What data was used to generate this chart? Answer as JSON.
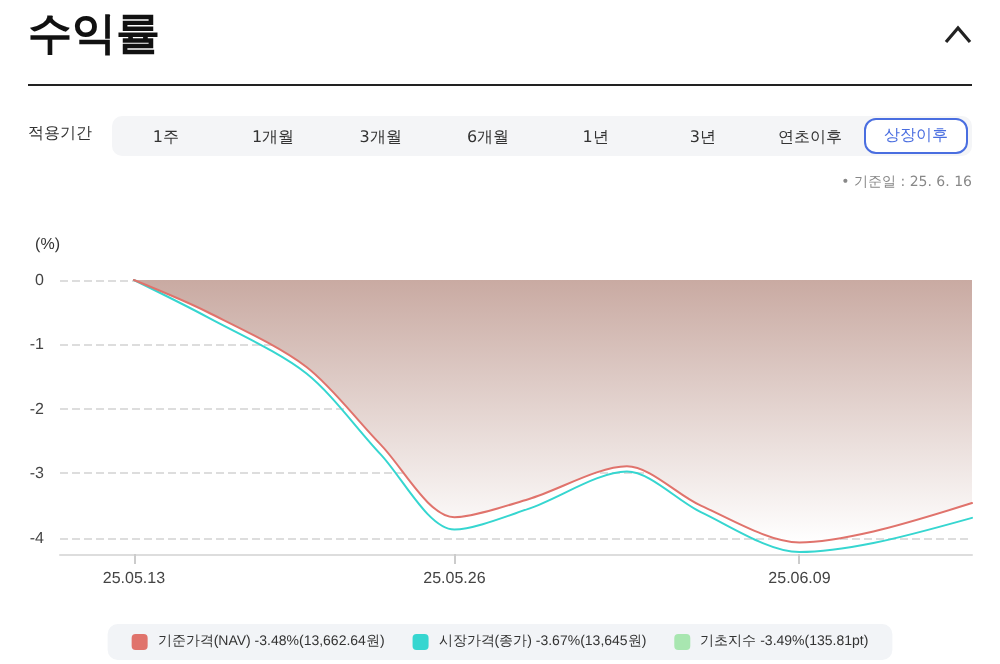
{
  "chart_data": {
    "type": "line",
    "title": "수익률",
    "annotations": [
      "적용기간",
      "1주",
      "1개월",
      "3개월",
      "6개월",
      "1년",
      "3년",
      "연초이후",
      "상장이후",
      "• 기준일 : 25. 6. 16"
    ],
    "ylabel": "(%)",
    "x": [
      "--05-13",
      "--05-16",
      "--05-20",
      "--05-23",
      "--05-26",
      "--05-29",
      "--06-02",
      "--06-05",
      "--06-09",
      "--06-12",
      "--06-16"
    ],
    "xlim": [
      "--05-10",
      "--06-16"
    ],
    "xticks": [
      {
        "value": "--05-13",
        "label": "25.05.13"
      },
      {
        "value": "--05-26",
        "label": "25.05.26"
      },
      {
        "value": "--06-09",
        "label": "25.06.09"
      }
    ],
    "ylim": [
      -4.25,
      0
    ],
    "yticks": [
      -4,
      -3,
      -2,
      -1,
      0
    ],
    "series": [
      {
        "name": "기준가격(NAV) -3.48%(13,662.64원)",
        "type": "area",
        "color": "#e0736c",
        "values": [
          0,
          -0.5,
          -1.35,
          -2.55,
          -3.68,
          -3.4,
          -2.89,
          -3.5,
          -4.07,
          -3.9,
          -3.46
        ]
      },
      {
        "name": "시장가격(종가) -3.67%(13,645원)",
        "color": "#36d6d0",
        "values": [
          0,
          -0.58,
          -1.45,
          -2.7,
          -3.87,
          -3.55,
          -2.97,
          -3.6,
          -4.22,
          -4.08,
          -3.69
        ]
      },
      {
        "name": "기초지수 -3.49%(135.81pt)",
        "color": "#a8e6b0",
        "values": [
          null,
          null,
          null,
          null,
          null,
          null,
          null,
          null,
          null,
          null,
          null
        ]
      }
    ],
    "grid": "y",
    "legend": "bottom",
    "marker": "none",
    "line_style": "solid"
  }
}
